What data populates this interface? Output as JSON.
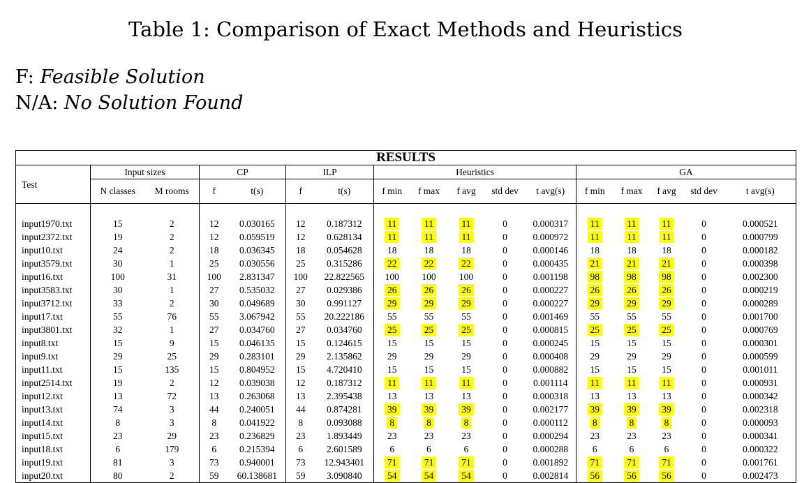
{
  "title": "Table 1: Comparison of Exact Methods and Heuristics",
  "legend": {
    "f_key": "F:",
    "f_val": "Feasible Solution",
    "na_key": "N/A:",
    "na_val": "No Solution Found"
  },
  "table": {
    "caption": "RESULTS",
    "groups": {
      "test": "Test",
      "input_sizes": "Input sizes",
      "cp": "CP",
      "ilp": "ILP",
      "heuristics": "Heuristics",
      "ga": "GA"
    },
    "columns": {
      "n_classes": "N classes",
      "m_rooms": "M rooms",
      "cp_f": "f",
      "cp_t": "t(s)",
      "ilp_f": "f",
      "ilp_t": "t(s)",
      "h_fmin": "f min",
      "h_fmax": "f max",
      "h_favg": "f avg",
      "h_std": "std dev",
      "h_tavg": "t avg(s)",
      "ga_fmin": "f min",
      "ga_fmax": "f max",
      "ga_favg": "f avg",
      "ga_std": "std dev",
      "ga_tavg": "t avg(s)"
    },
    "highlight_color": "#ffff00",
    "rows": [
      [
        "input1970.txt",
        "15",
        "2",
        "12",
        "0.030165",
        "12",
        "0.187312",
        "11",
        "11",
        "11",
        "0",
        "0.000317",
        "11",
        "11",
        "11",
        "0",
        "0.000521",
        1,
        1
      ],
      [
        "input2372.txt",
        "19",
        "2",
        "12",
        "0.059519",
        "12",
        "0.628134",
        "11",
        "11",
        "11",
        "0",
        "0.000972",
        "11",
        "11",
        "11",
        "0",
        "0.000799",
        1,
        1
      ],
      [
        "input10.txt",
        "24",
        "2",
        "18",
        "0.036345",
        "18",
        "0.054628",
        "18",
        "18",
        "18",
        "0",
        "0.000146",
        "18",
        "18",
        "18",
        "0",
        "0.000182",
        0,
        0
      ],
      [
        "input3579.txt",
        "30",
        "1",
        "25",
        "0.030556",
        "25",
        "0.315286",
        "22",
        "22",
        "22",
        "0",
        "0.000435",
        "21",
        "21",
        "21",
        "0",
        "0.000398",
        1,
        1
      ],
      [
        "input16.txt",
        "100",
        "31",
        "100",
        "2.831347",
        "100",
        "22.822565",
        "100",
        "100",
        "100",
        "0",
        "0.001198",
        "98",
        "98",
        "98",
        "0",
        "0.002300",
        0,
        1
      ],
      [
        "input3583.txt",
        "30",
        "1",
        "27",
        "0.535032",
        "27",
        "0.029386",
        "26",
        "26",
        "26",
        "0",
        "0.000227",
        "26",
        "26",
        "26",
        "0",
        "0.000219",
        1,
        1
      ],
      [
        "input3712.txt",
        "33",
        "2",
        "30",
        "0.049689",
        "30",
        "0.991127",
        "29",
        "29",
        "29",
        "0",
        "0.000227",
        "29",
        "29",
        "29",
        "0",
        "0.000289",
        1,
        1
      ],
      [
        "input17.txt",
        "55",
        "76",
        "55",
        "3.067942",
        "55",
        "20.222186",
        "55",
        "55",
        "55",
        "0",
        "0.001469",
        "55",
        "55",
        "55",
        "0",
        "0.001700",
        0,
        0
      ],
      [
        "input3801.txt",
        "32",
        "1",
        "27",
        "0.034760",
        "27",
        "0.034760",
        "25",
        "25",
        "25",
        "0",
        "0.000815",
        "25",
        "25",
        "25",
        "0",
        "0.000769",
        1,
        1
      ],
      [
        "input8.txt",
        "15",
        "9",
        "15",
        "0.046135",
        "15",
        "0.124615",
        "15",
        "15",
        "15",
        "0",
        "0.000245",
        "15",
        "15",
        "15",
        "0",
        "0.000301",
        0,
        0
      ],
      [
        "input9.txt",
        "29",
        "25",
        "29",
        "0.283101",
        "29",
        "2.135862",
        "29",
        "29",
        "29",
        "0",
        "0.000408",
        "29",
        "29",
        "29",
        "0",
        "0.000599",
        0,
        0
      ],
      [
        "input11.txt",
        "15",
        "135",
        "15",
        "0.804952",
        "15",
        "4.720410",
        "15",
        "15",
        "15",
        "0",
        "0.000882",
        "15",
        "15",
        "15",
        "0",
        "0.001011",
        0,
        0
      ],
      [
        "input2514.txt",
        "19",
        "2",
        "12",
        "0.039038",
        "12",
        "0.187312",
        "11",
        "11",
        "11",
        "0",
        "0.001114",
        "11",
        "11",
        "11",
        "0",
        "0.000931",
        1,
        1
      ],
      [
        "input12.txt",
        "13",
        "72",
        "13",
        "0.263068",
        "13",
        "2.395438",
        "13",
        "13",
        "13",
        "0",
        "0.000318",
        "13",
        "13",
        "13",
        "0",
        "0.000342",
        0,
        0
      ],
      [
        "input13.txt",
        "74",
        "3",
        "44",
        "0.240051",
        "44",
        "0.874281",
        "39",
        "39",
        "39",
        "0",
        "0.002177",
        "39",
        "39",
        "39",
        "0",
        "0.002318",
        1,
        1
      ],
      [
        "input14.txt",
        "8",
        "3",
        "8",
        "0.041922",
        "8",
        "0.093088",
        "8",
        "8",
        "8",
        "0",
        "0.000112",
        "8",
        "8",
        "8",
        "0",
        "0.000093",
        1,
        1
      ],
      [
        "input15.txt",
        "23",
        "29",
        "23",
        "0.236829",
        "23",
        "1.893449",
        "23",
        "23",
        "23",
        "0",
        "0.000294",
        "23",
        "23",
        "23",
        "0",
        "0.000341",
        0,
        0
      ],
      [
        "input18.txt",
        "6",
        "179",
        "6",
        "0.215394",
        "6",
        "2.601589",
        "6",
        "6",
        "6",
        "0",
        "0.000288",
        "6",
        "6",
        "6",
        "0",
        "0.000322",
        0,
        0
      ],
      [
        "input19.txt",
        "81",
        "3",
        "73",
        "0.940001",
        "73",
        "12.943401",
        "71",
        "71",
        "71",
        "0",
        "0.001892",
        "71",
        "71",
        "71",
        "0",
        "0.001761",
        1,
        1
      ],
      [
        "input20.txt",
        "80",
        "2",
        "59",
        "60.138681",
        "59",
        "3.090840",
        "54",
        "54",
        "54",
        "0",
        "0.002814",
        "56",
        "56",
        "56",
        "0",
        "0.002473",
        1,
        1
      ]
    ]
  }
}
